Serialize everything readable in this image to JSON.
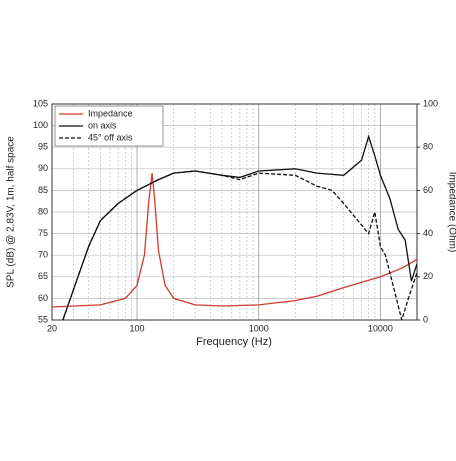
{
  "chart_data": {
    "type": "line",
    "xlabel": "Frequency (Hz)",
    "ylabel": "SPL (dB) @ 2.83V, 1m, half space",
    "y2label": "Impedance (Ohm)",
    "xscale": "log",
    "xlim": [
      20,
      20000
    ],
    "xticks": [
      20,
      100,
      1000,
      10000
    ],
    "xgrid_minor": [
      30,
      40,
      50,
      60,
      70,
      80,
      90,
      200,
      300,
      400,
      500,
      600,
      700,
      800,
      900,
      2000,
      3000,
      4000,
      5000,
      6000,
      7000,
      8000,
      9000
    ],
    "ylim": [
      55,
      105
    ],
    "yticks": [
      55,
      60,
      65,
      70,
      75,
      80,
      85,
      90,
      95,
      100,
      105
    ],
    "y2lim": [
      0,
      100
    ],
    "y2ticks": [
      0,
      20,
      40,
      60,
      80,
      100
    ],
    "grid": true,
    "legend": "upper left",
    "series": [
      {
        "name": "Impedance",
        "color": "#d03a2f",
        "dash": false,
        "axis": "y2",
        "x": [
          20,
          50,
          80,
          100,
          115,
          125,
          133,
          140,
          150,
          170,
          200,
          300,
          500,
          1000,
          2000,
          3000,
          5000,
          10000,
          15000,
          20000
        ],
        "values": [
          6,
          7,
          10,
          16,
          30,
          55,
          68,
          55,
          32,
          16,
          10,
          7,
          6.5,
          7,
          9,
          11,
          15,
          20,
          24,
          28
        ]
      },
      {
        "name": "on axis",
        "color": "#111111",
        "dash": false,
        "x": [
          24.6,
          30,
          40,
          50,
          70,
          100,
          150,
          200,
          300,
          500,
          700,
          1000,
          2000,
          3000,
          5000,
          7000,
          8000,
          9000,
          10000,
          12000,
          14000,
          16000,
          18000,
          20000
        ],
        "values": [
          55,
          62,
          72,
          78,
          82,
          85,
          87.5,
          89,
          89.5,
          88.5,
          88,
          89.5,
          90,
          89,
          88.5,
          92,
          97.5,
          93,
          88.5,
          83,
          76,
          73.5,
          64,
          68
        ]
      },
      {
        "name": "45° off axis",
        "color": "#111111",
        "dash": true,
        "x": [
          24.6,
          30,
          40,
          50,
          70,
          100,
          150,
          200,
          300,
          500,
          700,
          1000,
          2000,
          3000,
          4000,
          5000,
          7000,
          8000,
          9000,
          10000,
          11000,
          13000,
          15000,
          17000,
          20000
        ],
        "values": [
          55,
          62,
          72,
          78,
          82,
          85,
          87.5,
          89,
          89.5,
          88.5,
          87.5,
          89,
          88.5,
          86,
          85,
          82,
          77,
          75,
          80,
          72,
          70,
          62,
          55,
          60,
          66
        ]
      }
    ]
  }
}
